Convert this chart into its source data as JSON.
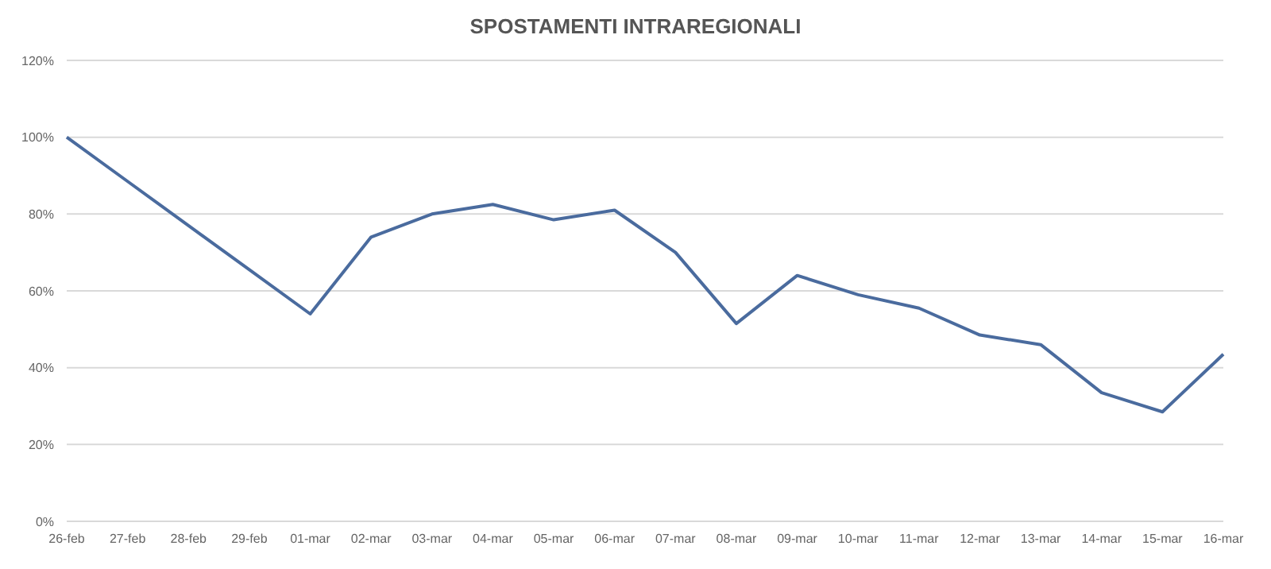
{
  "chart_data": {
    "type": "line",
    "title": "SPOSTAMENTI INTRAREGIONALI",
    "categories": [
      "26-feb",
      "27-feb",
      "28-feb",
      "29-feb",
      "01-mar",
      "02-mar",
      "03-mar",
      "04-mar",
      "05-mar",
      "06-mar",
      "07-mar",
      "08-mar",
      "09-mar",
      "10-mar",
      "11-mar",
      "12-mar",
      "13-mar",
      "14-mar",
      "15-mar",
      "16-mar"
    ],
    "series": [
      {
        "color": "#4a6b9e",
        "values": [
          100,
          88.5,
          77,
          65.5,
          54,
          74,
          80,
          82.5,
          78.5,
          81,
          70,
          51.5,
          64,
          59,
          55.5,
          48.5,
          46,
          33.5,
          28.5,
          43.5
        ]
      }
    ],
    "ylim": [
      0,
      120
    ],
    "yticks": [
      {
        "value": 0,
        "label": "0%"
      },
      {
        "value": 20,
        "label": "20%"
      },
      {
        "value": 40,
        "label": "40%"
      },
      {
        "value": 60,
        "label": "60%"
      },
      {
        "value": 80,
        "label": "80%"
      },
      {
        "value": 100,
        "label": "100%"
      },
      {
        "value": 120,
        "label": "120%"
      }
    ],
    "grid": "y",
    "marker": "none",
    "line_style": "solid",
    "legend": false
  }
}
